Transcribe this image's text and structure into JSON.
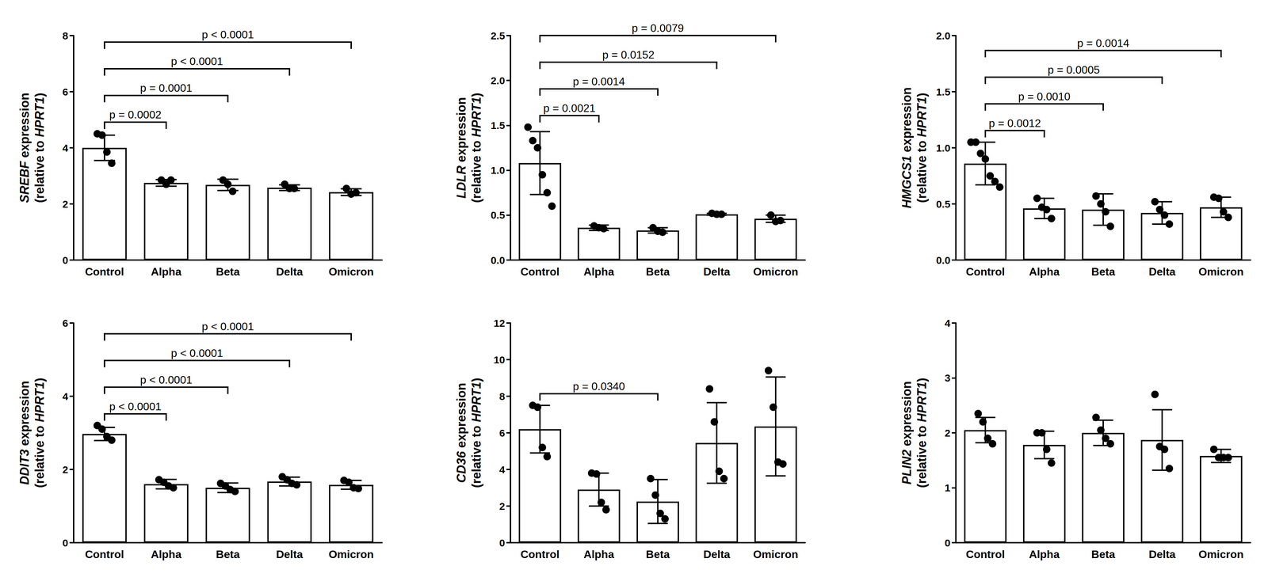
{
  "chart_data": [
    {
      "type": "bar",
      "ylabel": [
        "SREBF expression",
        "(relative to HPRT1)"
      ],
      "color": "#ffffff",
      "categories": [
        "Control",
        "Alpha",
        "Beta",
        "Delta",
        "Omicron"
      ],
      "values": [
        4.0,
        2.75,
        2.68,
        2.58,
        2.42
      ],
      "error": [
        0.45,
        0.12,
        0.2,
        0.1,
        0.12
      ],
      "points": [
        [
          4.5,
          4.45,
          3.85,
          3.45
        ],
        [
          2.85,
          2.7,
          2.85
        ],
        [
          2.85,
          2.7,
          2.45
        ],
        [
          2.7,
          2.55,
          2.55
        ],
        [
          2.55,
          2.35,
          2.4
        ]
      ],
      "ylim": [
        0,
        8
      ],
      "yticks": [
        0,
        2,
        4,
        6,
        8
      ],
      "annotations": [
        {
          "text": "p = 0.0002",
          "from": "Control",
          "to": "Alpha"
        },
        {
          "text": "p = 0.0001",
          "from": "Control",
          "to": "Beta"
        },
        {
          "text": "p < 0.0001",
          "from": "Control",
          "to": "Delta"
        },
        {
          "text": "p < 0.0001",
          "from": "Control",
          "to": "Omicron"
        }
      ]
    },
    {
      "type": "bar",
      "ylabel": [
        "LDLR expression",
        "(relative to HPRT1)"
      ],
      "color": "#ffffff",
      "categories": [
        "Control",
        "Alpha",
        "Beta",
        "Delta",
        "Omicron"
      ],
      "values": [
        1.08,
        0.36,
        0.33,
        0.51,
        0.46
      ],
      "error": [
        0.35,
        0.03,
        0.03,
        0.01,
        0.04
      ],
      "points": [
        [
          1.48,
          1.33,
          1.25,
          0.95,
          0.75,
          0.6
        ],
        [
          0.38,
          0.36,
          0.35
        ],
        [
          0.36,
          0.32,
          0.31
        ],
        [
          0.52,
          0.51,
          0.51
        ],
        [
          0.5,
          0.43,
          0.44
        ]
      ],
      "ylim": [
        0,
        2.5
      ],
      "yticks": [
        {
          "value": 0,
          "label": "0.0"
        },
        0.5,
        {
          "value": 1,
          "label": "1.0"
        },
        1.5,
        {
          "value": 2,
          "label": "2.0"
        },
        2.5
      ],
      "annotations": [
        {
          "text": "p = 0.0021",
          "from": "Control",
          "to": "Alpha"
        },
        {
          "text": "p = 0.0014",
          "from": "Control",
          "to": "Beta"
        },
        {
          "text": "p = 0.0152",
          "from": "Control",
          "to": "Delta"
        },
        {
          "text": "p = 0.0079",
          "from": "Control",
          "to": "Omicron"
        }
      ]
    },
    {
      "type": "bar",
      "ylabel": [
        "HMGCS1 expression",
        "(relative to HPRT1)"
      ],
      "color": "#ffffff",
      "categories": [
        "Control",
        "Alpha",
        "Beta",
        "Delta",
        "Omicron"
      ],
      "values": [
        0.86,
        0.46,
        0.45,
        0.42,
        0.47
      ],
      "error": [
        0.19,
        0.09,
        0.14,
        0.1,
        0.09
      ],
      "points": [
        [
          1.05,
          1.05,
          0.95,
          0.9,
          0.75,
          0.7,
          0.65
        ],
        [
          0.55,
          0.47,
          0.45,
          0.37
        ],
        [
          0.57,
          0.5,
          0.43,
          0.3
        ],
        [
          0.52,
          0.45,
          0.4,
          0.32
        ],
        [
          0.56,
          0.55,
          0.43,
          0.38
        ]
      ],
      "ylim": [
        0,
        2
      ],
      "yticks": [
        {
          "value": 0,
          "label": "0.0"
        },
        0.5,
        {
          "value": 1,
          "label": "1.0"
        },
        1.5,
        {
          "value": 2,
          "label": "2.0"
        }
      ],
      "annotations": [
        {
          "text": "p = 0.0012",
          "from": "Control",
          "to": "Alpha"
        },
        {
          "text": "p = 0.0010",
          "from": "Control",
          "to": "Beta"
        },
        {
          "text": "p = 0.0005",
          "from": "Control",
          "to": "Delta"
        },
        {
          "text": "p = 0.0014",
          "from": "Control",
          "to": "Omicron"
        }
      ]
    },
    {
      "type": "bar",
      "ylabel": [
        "DDIT3 expression",
        "(relative to HPRT1)"
      ],
      "color": "#ffffff",
      "categories": [
        "Control",
        "Alpha",
        "Beta",
        "Delta",
        "Omicron"
      ],
      "values": [
        2.97,
        1.6,
        1.5,
        1.67,
        1.58
      ],
      "error": [
        0.18,
        0.13,
        0.13,
        0.12,
        0.12
      ],
      "points": [
        [
          3.2,
          3.1,
          2.9,
          2.8
        ],
        [
          1.72,
          1.65,
          1.55,
          1.5
        ],
        [
          1.62,
          1.55,
          1.45,
          1.4
        ],
        [
          1.8,
          1.72,
          1.62,
          1.58
        ],
        [
          1.7,
          1.65,
          1.5,
          1.48
        ]
      ],
      "ylim": [
        0,
        6
      ],
      "yticks": [
        0,
        2,
        4,
        6
      ],
      "annotations": [
        {
          "text": "p < 0.0001",
          "from": "Control",
          "to": "Alpha"
        },
        {
          "text": "p < 0.0001",
          "from": "Control",
          "to": "Beta"
        },
        {
          "text": "p < 0.0001",
          "from": "Control",
          "to": "Delta"
        },
        {
          "text": "p < 0.0001",
          "from": "Control",
          "to": "Omicron"
        }
      ]
    },
    {
      "type": "bar",
      "ylabel": [
        "CD36 expression",
        "(relative to HPRT1)"
      ],
      "color": "#ffffff",
      "categories": [
        "Control",
        "Alpha",
        "Beta",
        "Delta",
        "Omicron"
      ],
      "values": [
        6.2,
        2.9,
        2.25,
        5.45,
        6.35
      ],
      "error": [
        1.3,
        0.9,
        1.2,
        2.2,
        2.7
      ],
      "points": [
        [
          7.5,
          7.4,
          5.2,
          4.7
        ],
        [
          3.8,
          3.75,
          2.2,
          1.8
        ],
        [
          3.5,
          2.6,
          1.6,
          1.3
        ],
        [
          8.4,
          6.6,
          3.9,
          3.5
        ],
        [
          9.4,
          7.4,
          4.4,
          4.3
        ]
      ],
      "ylim": [
        0,
        12
      ],
      "yticks": [
        0,
        2,
        4,
        6,
        8,
        10,
        12
      ],
      "annotations": [
        {
          "text": "p = 0.0340",
          "from": "Control",
          "to": "Beta"
        }
      ]
    },
    {
      "type": "bar",
      "ylabel": [
        "PLIN2 expression",
        "(relative to HPRT1)"
      ],
      "color": "#ffffff",
      "categories": [
        "Control",
        "Alpha",
        "Beta",
        "Delta",
        "Omicron"
      ],
      "values": [
        2.05,
        1.78,
        2.0,
        1.87,
        1.58
      ],
      "error": [
        0.23,
        0.25,
        0.23,
        0.55,
        0.12
      ],
      "points": [
        [
          2.35,
          2.2,
          1.9,
          1.8
        ],
        [
          2.0,
          2.0,
          1.7,
          1.45
        ],
        [
          2.28,
          2.05,
          1.9,
          1.8
        ],
        [
          2.7,
          1.75,
          1.7,
          1.35
        ],
        [
          1.7,
          1.55,
          1.55,
          1.55
        ]
      ],
      "ylim": [
        0,
        4
      ],
      "yticks": [
        0,
        1,
        2,
        3,
        4
      ]
    }
  ]
}
